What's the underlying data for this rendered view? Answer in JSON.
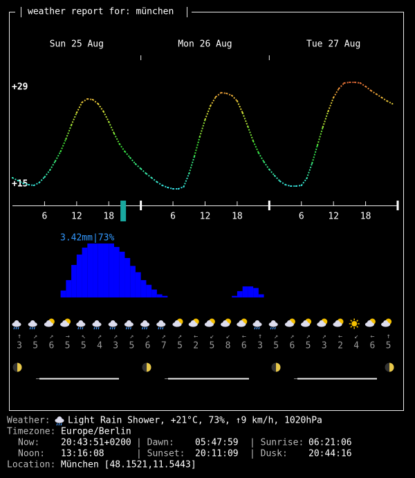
{
  "header": {
    "title": "weather report for: münchen"
  },
  "chart_data": {
    "type": "line",
    "days": [
      "Sun 25 Aug",
      "Mon 26 Aug",
      "Tue 27 Aug"
    ],
    "hour_ticks": [
      6,
      12,
      18
    ],
    "ylim": [
      14,
      30
    ],
    "yticks": [
      {
        "value": 29,
        "label": "+29"
      },
      {
        "value": 15,
        "label": "+15"
      }
    ],
    "temperature": [
      15.9,
      15.5,
      15.1,
      14.9,
      14.8,
      15.2,
      16,
      17,
      18.3,
      19.7,
      21.5,
      23.5,
      25.3,
      26.8,
      27.3,
      27.2,
      26.6,
      25.5,
      24,
      22.3,
      20.8,
      19.7,
      18.8,
      17.9,
      17.2,
      16.5,
      15.9,
      15.3,
      14.8,
      14.5,
      14.3,
      14.3,
      14.6,
      16.5,
      19,
      21.8,
      24.3,
      26.3,
      27.6,
      28.2,
      28.1,
      27.8,
      27,
      25.3,
      23.3,
      21.2,
      19.5,
      18.2,
      17.1,
      16.2,
      15.4,
      14.9,
      14.7,
      14.7,
      14.8,
      15.8,
      18,
      20.6,
      23.2,
      25.5,
      27.5,
      28.8,
      29.6,
      29.7,
      29.7,
      29.6,
      29.1,
      28.5,
      28,
      27.5,
      27,
      26.6
    ],
    "precipitation": [
      0,
      0,
      0,
      0,
      0,
      0,
      0,
      0,
      0,
      0.44,
      1.1,
      2.06,
      2.72,
      3.16,
      3.42,
      3.42,
      3.42,
      3.42,
      3.42,
      3.2,
      2.9,
      2.5,
      2.0,
      1.6,
      1.1,
      0.8,
      0.5,
      0.2,
      0.1,
      0,
      0,
      0,
      0,
      0,
      0,
      0,
      0,
      0,
      0,
      0,
      0,
      0.1,
      0.4,
      0.7,
      0.7,
      0.6,
      0.2,
      0,
      0,
      0,
      0,
      0,
      0,
      0,
      0,
      0,
      0,
      0,
      0,
      0,
      0,
      0,
      0,
      0,
      0,
      0,
      0,
      0,
      0,
      0,
      0,
      0
    ],
    "precip_label": "3.42mm|73%"
  },
  "wind": {
    "directions": [
      "↑",
      "↗",
      "↗",
      "→",
      "↖",
      "↗",
      "↗",
      "↗",
      "↗",
      "↗",
      "↗",
      "←",
      "↙",
      "↙",
      "←",
      "↑",
      "↗",
      "↗",
      "↗",
      "↗",
      "←",
      "↙",
      "←",
      "↑"
    ],
    "speeds": [
      3,
      5,
      6,
      5,
      5,
      4,
      3,
      5,
      6,
      7,
      5,
      2,
      5,
      8,
      6,
      3,
      5,
      6,
      5,
      3,
      2,
      4,
      6,
      5
    ]
  },
  "info": {
    "weather_label": "Weather:",
    "weather": "Light Rain Shower, +21°C, 73%, ↑9 km/h, 1020hPa",
    "timezone_label": "Timezone:",
    "timezone": "Europe/Berlin",
    "now_label": "Now:",
    "now": "20:43:51+0200",
    "dawn_label": "| Dawn:",
    "dawn": "05:47:59",
    "sunrise_label": "| Sunrise:",
    "sunrise": "06:21:06",
    "noon_label": "Noon:",
    "noon": "13:16:08",
    "sunset_label": "| Sunset:",
    "sunset": "20:11:09",
    "dusk_label": "| Dusk:",
    "dusk": "20:44:16",
    "location_label": "Location:",
    "location": "München [48.1521,11.5443]"
  }
}
